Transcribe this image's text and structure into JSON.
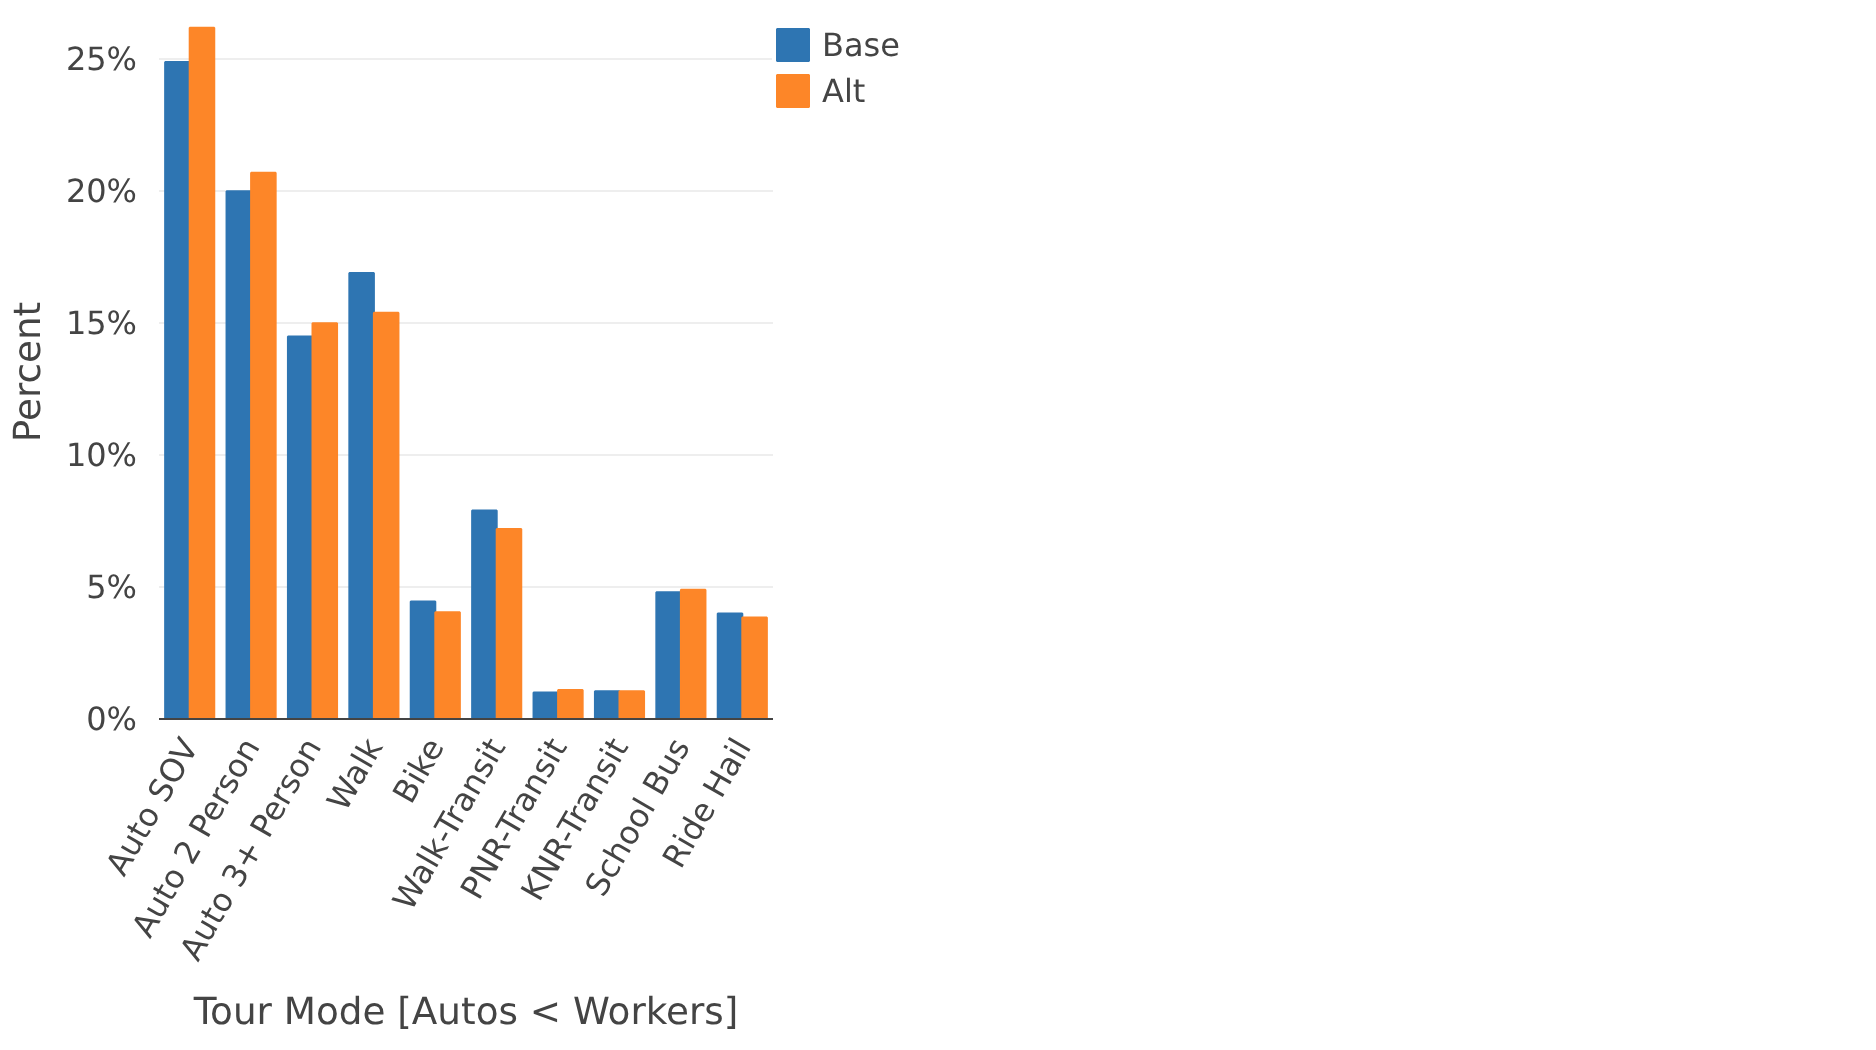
{
  "chart_data": {
    "type": "bar",
    "xlabel": "Tour Mode [Autos < Workers]",
    "ylabel": "Percent",
    "categories": [
      "Auto SOV",
      "Auto 2 Person",
      "Auto 3+ Person",
      "Walk",
      "Bike",
      "Walk-Transit",
      "PNR-Transit",
      "KNR-Transit",
      "School Bus",
      "Ride Hail"
    ],
    "series": [
      {
        "name": "Base",
        "color": "#2e75b2",
        "values": [
          24.9,
          20.0,
          14.5,
          16.9,
          4.45,
          7.9,
          1.0,
          1.05,
          4.8,
          4.0
        ]
      },
      {
        "name": "Alt",
        "color": "#fd8628",
        "values": [
          26.2,
          20.7,
          15.0,
          15.4,
          4.05,
          7.2,
          1.1,
          1.05,
          4.9,
          3.85
        ]
      }
    ],
    "ylim": [
      0,
      26.3
    ],
    "yticks": [
      {
        "value": 0,
        "label": "0%"
      },
      {
        "value": 5,
        "label": "5%"
      },
      {
        "value": 10,
        "label": "10%"
      },
      {
        "value": 15,
        "label": "15%"
      },
      {
        "value": 20,
        "label": "20%"
      },
      {
        "value": 25,
        "label": "25%"
      }
    ],
    "grid": "y",
    "legend": "top right"
  }
}
